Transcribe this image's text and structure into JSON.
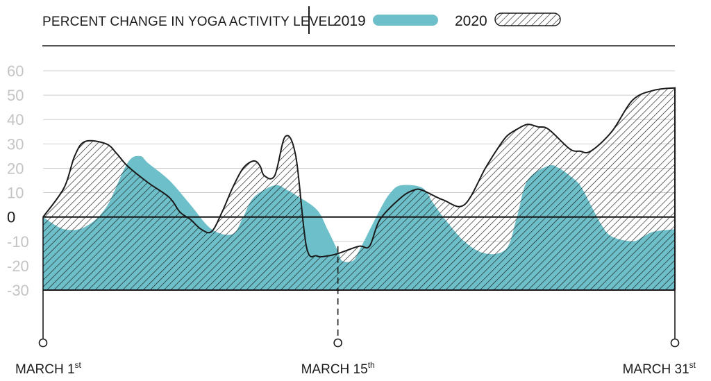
{
  "chart_data": {
    "type": "area",
    "title": "PERCENT CHANGE IN YOGA ACTIVITY LEVEL",
    "ylim": [
      -30,
      60
    ],
    "yticks": [
      60,
      50,
      40,
      30,
      20,
      10,
      0,
      -10,
      -20,
      -30
    ],
    "grid": true,
    "legend_position": "top",
    "x_range": [
      1,
      31
    ],
    "x_markers": [
      {
        "day": 1,
        "label": "MARCH 1",
        "suffix": "st"
      },
      {
        "day": 15,
        "label": "MARCH 15",
        "suffix": "th"
      },
      {
        "day": 31,
        "label": "MARCH 31",
        "suffix": "st"
      }
    ],
    "series": [
      {
        "name": "2019",
        "color": "#6dbfc9",
        "style": "solid",
        "x": [
          1,
          2,
          3,
          4,
          5,
          5.6,
          6,
          7,
          8,
          9,
          10,
          10.5,
          11,
          12,
          12.6,
          13,
          14,
          14.5,
          15,
          15.2,
          15.7,
          16,
          17,
          17.5,
          18,
          19,
          19.5,
          20,
          21,
          22,
          23,
          23.5,
          24,
          25,
          25.5,
          26,
          26.5,
          27,
          27.5,
          28,
          29,
          29.5,
          30,
          31
        ],
        "y": [
          0,
          -5,
          -4,
          4,
          22,
          25,
          22,
          15,
          5,
          -5,
          -7,
          0,
          8,
          13,
          11,
          9,
          3,
          -5,
          -14,
          -18,
          -18,
          -14,
          3,
          10,
          13,
          12,
          6,
          0,
          -10,
          -15,
          -13,
          0,
          15,
          21,
          20,
          17,
          13,
          5,
          -3,
          -8,
          -10,
          -8,
          -6,
          -5
        ]
      },
      {
        "name": "2020",
        "color": "#1a1a1a",
        "style": "hatched",
        "x": [
          1,
          2,
          2.5,
          3,
          4,
          4.5,
          5,
          6,
          7,
          7.5,
          8,
          8.5,
          9,
          9.5,
          10,
          10.5,
          11,
          11.3,
          11.5,
          12,
          12.5,
          13,
          13.5,
          14,
          14.5,
          15,
          16,
          16.5,
          17,
          18,
          18.6,
          19,
          20,
          21,
          22,
          22.5,
          23,
          23.5,
          24,
          24.5,
          25,
          26,
          26.5,
          27,
          28,
          29,
          30,
          31
        ],
        "y": [
          0,
          12,
          25,
          31,
          30,
          26,
          21,
          14,
          8,
          2,
          -1,
          -5,
          -6,
          2,
          12,
          20,
          23,
          21,
          17,
          17,
          33,
          25,
          -12,
          -16,
          -16,
          -15,
          -12,
          -12,
          -1,
          8,
          11,
          11,
          7,
          5,
          20,
          27,
          33,
          36,
          38,
          37,
          36,
          28,
          27,
          27,
          35,
          48,
          52,
          53
        ]
      }
    ]
  },
  "legend": [
    {
      "label": "2019",
      "style": "solid"
    },
    {
      "label": "2020",
      "style": "hatched"
    }
  ]
}
